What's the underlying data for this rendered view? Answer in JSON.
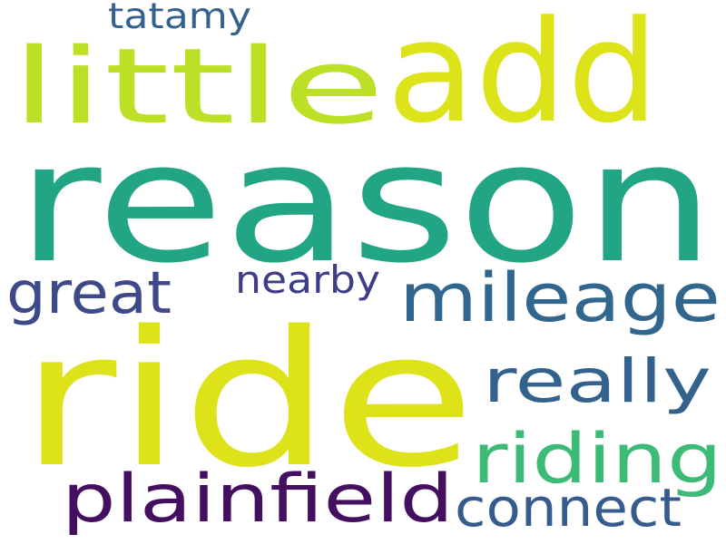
{
  "words": [
    {
      "id": "reason",
      "text": "reason",
      "color": "#21a585"
    },
    {
      "id": "ride",
      "text": "ride",
      "color": "#dde318"
    },
    {
      "id": "add",
      "text": "add",
      "color": "#dce319"
    },
    {
      "id": "little",
      "text": "little",
      "color": "#bddf26"
    },
    {
      "id": "mileage",
      "text": "mileage",
      "color": "#31668e"
    },
    {
      "id": "riding",
      "text": "riding",
      "color": "#3bbb75"
    },
    {
      "id": "plainfield",
      "text": "plainfield",
      "color": "#440f5f"
    },
    {
      "id": "really",
      "text": "really",
      "color": "#33638d"
    },
    {
      "id": "great",
      "text": "great",
      "color": "#3e4989"
    },
    {
      "id": "connect",
      "text": "connect",
      "color": "#365c8d"
    },
    {
      "id": "nearby",
      "text": "nearby",
      "color": "#3f3d88"
    },
    {
      "id": "tatamy",
      "text": "tatamy",
      "color": "#34618d"
    }
  ]
}
